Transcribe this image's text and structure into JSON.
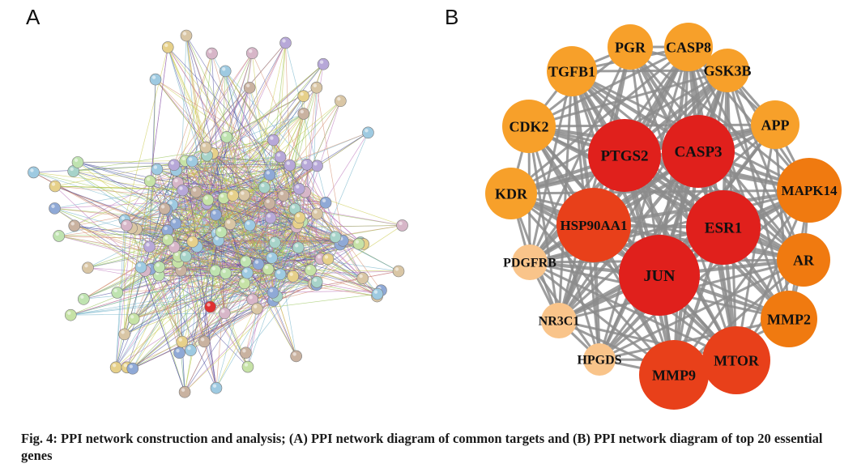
{
  "panels": {
    "a": {
      "letter": "A"
    },
    "b": {
      "letter": "B"
    }
  },
  "caption": "Fig. 4: PPI network construction and analysis; (A) PPI network diagram of common targets and (B) PPI network diagram of top 20 essential genes",
  "colors": {
    "edge_gray": "#8c8c8c",
    "degree_high": "#e0201c",
    "degree_mid_high": "#e8401a",
    "degree_mid": "#f07a10",
    "degree_low": "#f7a02a",
    "degree_lowest": "#f9c48a",
    "string_edge_colors": [
      "#b96fb9",
      "#8fbf4a",
      "#4f4f9e",
      "#c9c94a",
      "#6fb0c8",
      "#d28a6a"
    ]
  },
  "network_b": {
    "nodes": [
      {
        "label": "PGR",
        "tier": "low"
      },
      {
        "label": "CASP8",
        "tier": "low"
      },
      {
        "label": "GSK3B",
        "tier": "low"
      },
      {
        "label": "APP",
        "tier": "low"
      },
      {
        "label": "MAPK14",
        "tier": "mid"
      },
      {
        "label": "AR",
        "tier": "mid"
      },
      {
        "label": "MMP2",
        "tier": "mid"
      },
      {
        "label": "MTOR",
        "tier": "mid_high"
      },
      {
        "label": "MMP9",
        "tier": "mid_high"
      },
      {
        "label": "HPGDS",
        "tier": "lowest"
      },
      {
        "label": "NR3C1",
        "tier": "lowest"
      },
      {
        "label": "PDGFRB",
        "tier": "lowest"
      },
      {
        "label": "KDR",
        "tier": "low"
      },
      {
        "label": "CDK2",
        "tier": "low"
      },
      {
        "label": "TGFB1",
        "tier": "low"
      },
      {
        "label": "PTGS2",
        "tier": "high"
      },
      {
        "label": "CASP3",
        "tier": "high"
      },
      {
        "label": "ESR1",
        "tier": "high"
      },
      {
        "label": "JUN",
        "tier": "high"
      },
      {
        "label": "HSP90AA1",
        "tier": "mid_high"
      }
    ]
  }
}
